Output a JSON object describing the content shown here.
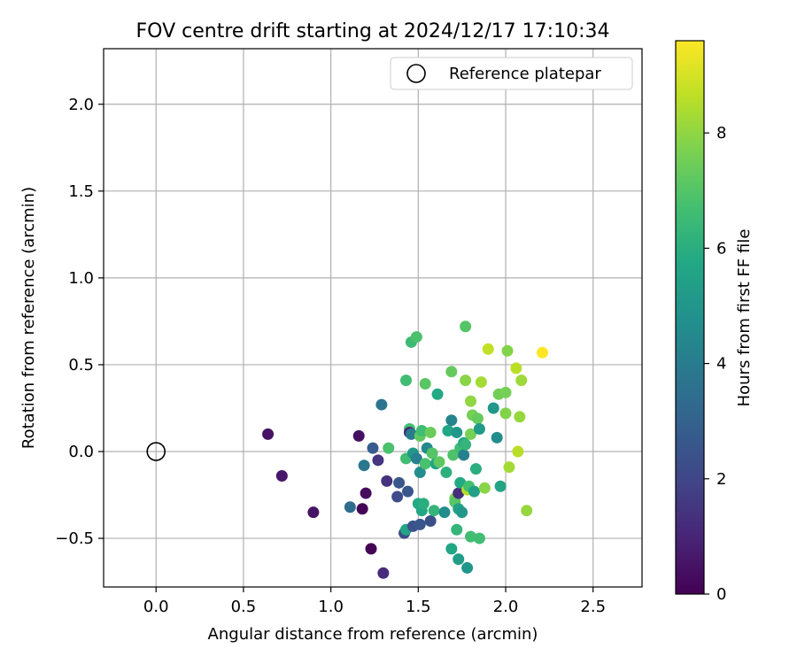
{
  "chart_data": {
    "type": "scatter",
    "title": "FOV centre drift starting at 2024/12/17 17:10:34",
    "xlabel": "Angular distance from reference (arcmin)",
    "ylabel": "Rotation from reference (arcmin)",
    "xlim": [
      -0.3,
      2.78
    ],
    "ylim": [
      -0.78,
      2.32
    ],
    "xticks": [
      "0.0",
      "0.5",
      "1.0",
      "1.5",
      "2.0",
      "2.5"
    ],
    "xtick_values": [
      0,
      0.5,
      1,
      1.5,
      2,
      2.5
    ],
    "yticks": [
      "−0.5",
      "0.0",
      "0.5",
      "1.0",
      "1.5",
      "2.0"
    ],
    "ytick_values": [
      -0.5,
      0,
      0.5,
      1,
      1.5,
      2
    ],
    "grid": true,
    "legend": {
      "position": "top-right",
      "entries": [
        {
          "label": "Reference platepar",
          "marker": "open-circle"
        }
      ]
    },
    "reference_point": {
      "x": 0.0,
      "y": 0.0
    },
    "colorbar": {
      "label": "Hours from first FF file",
      "colormap": "viridis",
      "range": [
        0,
        9.6
      ],
      "ticks": [
        "0",
        "2",
        "4",
        "6",
        "8"
      ],
      "tick_values": [
        0,
        2,
        4,
        6,
        8
      ]
    },
    "points": [
      {
        "x": 0.64,
        "y": 0.1,
        "c": 0.5
      },
      {
        "x": 0.72,
        "y": -0.14,
        "c": 0.6
      },
      {
        "x": 0.9,
        "y": -0.35,
        "c": 0.5
      },
      {
        "x": 1.11,
        "y": -0.32,
        "c": 3.4
      },
      {
        "x": 1.16,
        "y": 0.09,
        "c": 0.4
      },
      {
        "x": 1.18,
        "y": -0.33,
        "c": 0.1
      },
      {
        "x": 1.2,
        "y": -0.24,
        "c": 0.3
      },
      {
        "x": 1.19,
        "y": -0.08,
        "c": 3.8
      },
      {
        "x": 1.23,
        "y": -0.56,
        "c": 0.1
      },
      {
        "x": 1.24,
        "y": 0.02,
        "c": 2.8
      },
      {
        "x": 1.27,
        "y": -0.05,
        "c": 1.5
      },
      {
        "x": 1.29,
        "y": 0.27,
        "c": 3.7
      },
      {
        "x": 1.3,
        "y": -0.7,
        "c": 1.2
      },
      {
        "x": 1.32,
        "y": -0.17,
        "c": 1.4
      },
      {
        "x": 1.33,
        "y": 0.02,
        "c": 6.8
      },
      {
        "x": 1.38,
        "y": -0.26,
        "c": 2.2
      },
      {
        "x": 1.39,
        "y": -0.18,
        "c": 2.6
      },
      {
        "x": 1.42,
        "y": -0.47,
        "c": 2.2
      },
      {
        "x": 1.43,
        "y": -0.45,
        "c": 5.6
      },
      {
        "x": 1.43,
        "y": 0.41,
        "c": 6.6
      },
      {
        "x": 1.43,
        "y": -0.04,
        "c": 6.6
      },
      {
        "x": 1.44,
        "y": -0.23,
        "c": 2.6
      },
      {
        "x": 1.45,
        "y": 0.13,
        "c": 6.7
      },
      {
        "x": 1.45,
        "y": 0.11,
        "c": 1.1
      },
      {
        "x": 1.46,
        "y": 0.1,
        "c": 4.0
      },
      {
        "x": 1.46,
        "y": 0.63,
        "c": 6.5
      },
      {
        "x": 1.47,
        "y": -0.43,
        "c": 2.4
      },
      {
        "x": 1.47,
        "y": -0.01,
        "c": 5.1
      },
      {
        "x": 1.49,
        "y": 0.66,
        "c": 6.8
      },
      {
        "x": 1.49,
        "y": -0.04,
        "c": 4.1
      },
      {
        "x": 1.5,
        "y": -0.3,
        "c": 5.8
      },
      {
        "x": 1.51,
        "y": -0.42,
        "c": 2.6
      },
      {
        "x": 1.51,
        "y": -0.12,
        "c": 4.7
      },
      {
        "x": 1.51,
        "y": 0.09,
        "c": 7.2
      },
      {
        "x": 1.52,
        "y": -0.34,
        "c": 5.7
      },
      {
        "x": 1.52,
        "y": 0.12,
        "c": 6.6
      },
      {
        "x": 1.53,
        "y": -0.3,
        "c": 6.0
      },
      {
        "x": 1.54,
        "y": -0.07,
        "c": 6.8
      },
      {
        "x": 1.54,
        "y": 0.39,
        "c": 7.1
      },
      {
        "x": 1.55,
        "y": 0.02,
        "c": 4.5
      },
      {
        "x": 1.57,
        "y": 0.11,
        "c": 7.4
      },
      {
        "x": 1.57,
        "y": -0.4,
        "c": 2.3
      },
      {
        "x": 1.58,
        "y": -0.01,
        "c": 7.0
      },
      {
        "x": 1.59,
        "y": -0.34,
        "c": 6.3
      },
      {
        "x": 1.6,
        "y": -0.07,
        "c": 5.6
      },
      {
        "x": 1.61,
        "y": 0.33,
        "c": 5.8
      },
      {
        "x": 1.62,
        "y": -0.06,
        "c": 7.2
      },
      {
        "x": 1.65,
        "y": -0.35,
        "c": 4.6
      },
      {
        "x": 1.66,
        "y": -0.12,
        "c": 6.1
      },
      {
        "x": 1.67,
        "y": 0.12,
        "c": 5.7
      },
      {
        "x": 1.69,
        "y": 0.18,
        "c": 4.3
      },
      {
        "x": 1.69,
        "y": -0.56,
        "c": 5.7
      },
      {
        "x": 1.69,
        "y": 0.46,
        "c": 7.3
      },
      {
        "x": 1.7,
        "y": -0.02,
        "c": 6.9
      },
      {
        "x": 1.71,
        "y": -0.27,
        "c": 7.6
      },
      {
        "x": 1.71,
        "y": -0.29,
        "c": 7.1
      },
      {
        "x": 1.72,
        "y": 0.11,
        "c": 5.1
      },
      {
        "x": 1.72,
        "y": -0.45,
        "c": 6.3
      },
      {
        "x": 1.73,
        "y": -0.24,
        "c": 1.3
      },
      {
        "x": 1.73,
        "y": -0.62,
        "c": 5.3
      },
      {
        "x": 1.73,
        "y": -0.33,
        "c": 5.5
      },
      {
        "x": 1.74,
        "y": 0.02,
        "c": 6.6
      },
      {
        "x": 1.74,
        "y": -0.18,
        "c": 5.8
      },
      {
        "x": 1.75,
        "y": -0.35,
        "c": 5.1
      },
      {
        "x": 1.76,
        "y": -0.02,
        "c": 4.2
      },
      {
        "x": 1.76,
        "y": 0.05,
        "c": 5.7
      },
      {
        "x": 1.77,
        "y": 0.72,
        "c": 7.0
      },
      {
        "x": 1.77,
        "y": 0.41,
        "c": 7.9
      },
      {
        "x": 1.77,
        "y": 0.04,
        "c": 6.3
      },
      {
        "x": 1.78,
        "y": -0.67,
        "c": 5.0
      },
      {
        "x": 1.78,
        "y": -0.22,
        "c": 8.6
      },
      {
        "x": 1.79,
        "y": -0.2,
        "c": 6.7
      },
      {
        "x": 1.8,
        "y": 0.29,
        "c": 8.0
      },
      {
        "x": 1.8,
        "y": -0.49,
        "c": 6.6
      },
      {
        "x": 1.8,
        "y": 0.1,
        "c": 7.6
      },
      {
        "x": 1.81,
        "y": 0.21,
        "c": 7.6
      },
      {
        "x": 1.82,
        "y": -0.23,
        "c": 5.4
      },
      {
        "x": 1.83,
        "y": -0.1,
        "c": 6.0
      },
      {
        "x": 1.84,
        "y": 0.19,
        "c": 7.3
      },
      {
        "x": 1.85,
        "y": 0.13,
        "c": 5.2
      },
      {
        "x": 1.85,
        "y": -0.5,
        "c": 6.6
      },
      {
        "x": 1.86,
        "y": 0.4,
        "c": 8.3
      },
      {
        "x": 1.88,
        "y": -0.21,
        "c": 7.9
      },
      {
        "x": 1.9,
        "y": 0.59,
        "c": 8.7
      },
      {
        "x": 1.93,
        "y": 0.25,
        "c": 5.1
      },
      {
        "x": 1.95,
        "y": 0.08,
        "c": 4.6
      },
      {
        "x": 1.96,
        "y": 0.33,
        "c": 7.5
      },
      {
        "x": 1.97,
        "y": -0.2,
        "c": 5.6
      },
      {
        "x": 2.0,
        "y": 0.22,
        "c": 7.8
      },
      {
        "x": 2.0,
        "y": 0.34,
        "c": 7.6
      },
      {
        "x": 2.01,
        "y": 0.58,
        "c": 7.8
      },
      {
        "x": 2.02,
        "y": -0.09,
        "c": 8.3
      },
      {
        "x": 2.06,
        "y": 0.48,
        "c": 8.6
      },
      {
        "x": 2.07,
        "y": 0.0,
        "c": 8.6
      },
      {
        "x": 2.08,
        "y": 0.2,
        "c": 8.1
      },
      {
        "x": 2.09,
        "y": 0.41,
        "c": 8.2
      },
      {
        "x": 2.12,
        "y": -0.34,
        "c": 8.1
      },
      {
        "x": 2.21,
        "y": 0.57,
        "c": 9.6
      }
    ]
  }
}
